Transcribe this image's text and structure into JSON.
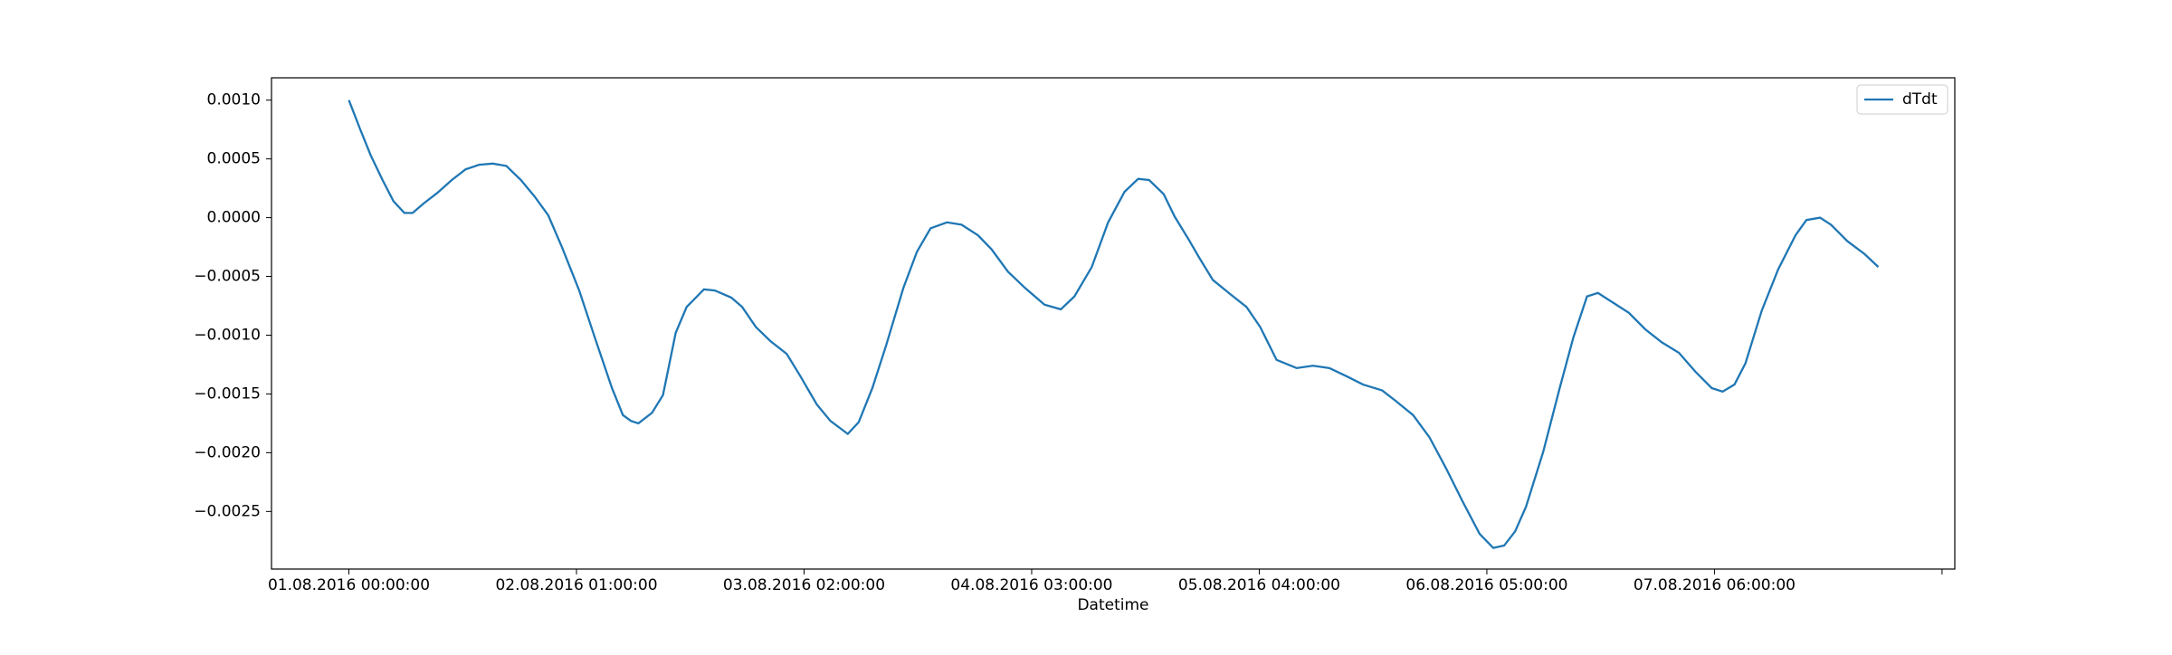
{
  "chart_data": {
    "type": "line",
    "x_label": "Datetime",
    "x": [
      0,
      1.2,
      2.4,
      3.7,
      4.9,
      6.1,
      7.0,
      8.2,
      9.7,
      11.3,
      12.8,
      14.3,
      15.8,
      17.3,
      18.9,
      20.4,
      21.9,
      23.4,
      25.3,
      27.1,
      28.9,
      30.1,
      31.0,
      31.8,
      33.3,
      34.5,
      35.9,
      37.1,
      39.0,
      40.2,
      42.0,
      43.2,
      44.7,
      46.3,
      48.1,
      49.6,
      51.4,
      52.9,
      54.8,
      56.0,
      57.5,
      59.0,
      60.9,
      62.4,
      63.9,
      65.7,
      67.3,
      69.1,
      70.6,
      72.4,
      74.3,
      76.4,
      78.2,
      79.7,
      81.6,
      83.4,
      85.2,
      86.7,
      87.9,
      89.5,
      90.7,
      92.2,
      93.4,
      94.9,
      96.8,
      98.6,
      100.1,
      101.9,
      104.1,
      105.9,
      107.7,
      109.6,
      111.4,
      113.5,
      115.0,
      116.9,
      118.7,
      120.5,
      122.3,
      124.2,
      125.7,
      126.9,
      128.1,
      129.3,
      131.2,
      133.0,
      134.5,
      136.0,
      137.2,
      138.8,
      140.6,
      142.4,
      144.2,
      146.1,
      147.9,
      149.7,
      150.9,
      152.2,
      153.4,
      155.2,
      157.0,
      158.9,
      160.1,
      161.6,
      162.8,
      164.6,
      166.5,
      168.0
    ],
    "series": [
      {
        "name": "dTdt",
        "color": "#1f77b4",
        "values": [
          0.001,
          0.00076,
          0.00053,
          0.00032,
          0.00014,
          4e-05,
          4e-05,
          0.00012,
          0.00021,
          0.00032,
          0.00041,
          0.00045,
          0.00046,
          0.00044,
          0.00032,
          0.00018,
          2e-05,
          -0.00025,
          -0.00062,
          -0.00104,
          -0.00145,
          -0.00168,
          -0.00173,
          -0.00175,
          -0.00166,
          -0.00151,
          -0.00098,
          -0.00076,
          -0.00061,
          -0.00062,
          -0.00068,
          -0.00076,
          -0.00093,
          -0.00105,
          -0.00116,
          -0.00135,
          -0.00159,
          -0.00173,
          -0.00184,
          -0.00174,
          -0.00145,
          -0.00109,
          -0.0006,
          -0.00029,
          -9e-05,
          -4e-05,
          -6e-05,
          -0.00015,
          -0.00027,
          -0.00046,
          -0.0006,
          -0.00074,
          -0.00078,
          -0.00067,
          -0.00042,
          -4e-05,
          0.00022,
          0.00033,
          0.00032,
          0.0002,
          1e-05,
          -0.00018,
          -0.00034,
          -0.00053,
          -0.00065,
          -0.00076,
          -0.00093,
          -0.00121,
          -0.00128,
          -0.00126,
          -0.00128,
          -0.00135,
          -0.00142,
          -0.00147,
          -0.00156,
          -0.00168,
          -0.00187,
          -0.00213,
          -0.00241,
          -0.00269,
          -0.00281,
          -0.00279,
          -0.00267,
          -0.00246,
          -0.00199,
          -0.00145,
          -0.00102,
          -0.00067,
          -0.00064,
          -0.00072,
          -0.00081,
          -0.00095,
          -0.00106,
          -0.00115,
          -0.00131,
          -0.00145,
          -0.00148,
          -0.00142,
          -0.00124,
          -0.00079,
          -0.00044,
          -0.00015,
          -2e-05,
          0.0,
          -6e-05,
          -0.0002,
          -0.00031,
          -0.00042
        ]
      }
    ],
    "xlim": [
      -8.5,
      176.4
    ],
    "xticks": [
      {
        "value": 0,
        "label": "01.08.2016 00:00:00"
      },
      {
        "value": 25,
        "label": "02.08.2016 01:00:00"
      },
      {
        "value": 50,
        "label": "03.08.2016 02:00:00"
      },
      {
        "value": 75,
        "label": "04.08.2016 03:00:00"
      },
      {
        "value": 100,
        "label": "05.08.2016 04:00:00"
      },
      {
        "value": 125,
        "label": "06.08.2016 05:00:00"
      },
      {
        "value": 150,
        "label": "07.08.2016 06:00:00"
      },
      {
        "value": 175,
        "label": null
      }
    ],
    "ylim": [
      -0.00299,
      0.00119
    ],
    "yticks": [
      {
        "value": 0.001,
        "label": "0.0010"
      },
      {
        "value": 0.0005,
        "label": "0.0005"
      },
      {
        "value": 0,
        "label": "0.0000"
      },
      {
        "value": -0.0005,
        "label": "−0.0005"
      },
      {
        "value": -0.001,
        "label": "−0.0010"
      },
      {
        "value": -0.0015,
        "label": "−0.0015"
      },
      {
        "value": -0.002,
        "label": "−0.0020"
      },
      {
        "value": -0.0025,
        "label": "−0.0025"
      }
    ],
    "grid": false,
    "legend": "upper right"
  }
}
